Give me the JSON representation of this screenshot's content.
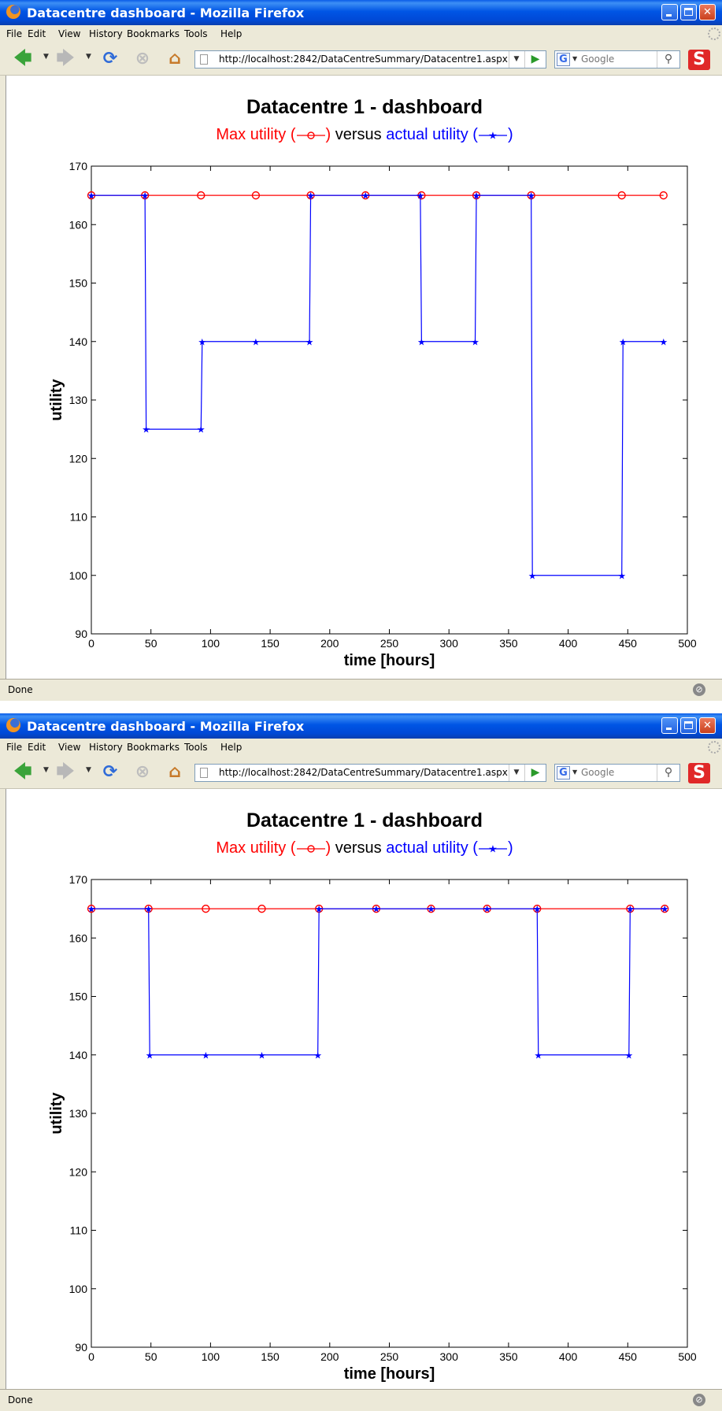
{
  "browser": {
    "window_title": "Datacentre dashboard - Mozilla Firefox",
    "menu": [
      "File",
      "Edit",
      "View",
      "History",
      "Bookmarks",
      "Tools",
      "Help"
    ],
    "url": "http://localhost:2842/DataCentreSummary/Datacentre1.aspx",
    "search_placeholder": "Google",
    "status": "Done"
  },
  "dashboard": {
    "title": "Datacentre 1 - dashboard",
    "subtitle_max": "Max utility (",
    "subtitle_max_close": ")",
    "subtitle_versus": "versus",
    "subtitle_actual": "actual utility (",
    "subtitle_actual_close": ")"
  },
  "colors": {
    "max_series": "#ff0000",
    "actual_series": "#0000ff",
    "titlebar": "#0055e5"
  },
  "chart_data": [
    {
      "type": "line",
      "title": "Datacentre 1 - dashboard",
      "xlabel": "time [hours]",
      "ylabel": "utility",
      "xlim": [
        0,
        500
      ],
      "ylim": [
        90,
        170
      ],
      "xticks": [
        0,
        50,
        100,
        150,
        200,
        250,
        300,
        350,
        400,
        450,
        500
      ],
      "yticks": [
        90,
        100,
        110,
        120,
        130,
        140,
        150,
        160,
        170
      ],
      "grid": false,
      "series": [
        {
          "name": "Max utility",
          "marker": "circle",
          "x": [
            0,
            45,
            92,
            138,
            184,
            230,
            277,
            323,
            369,
            445,
            480
          ],
          "y": [
            165,
            165,
            165,
            165,
            165,
            165,
            165,
            165,
            165,
            165,
            165
          ]
        },
        {
          "name": "actual utility",
          "marker": "star",
          "x": [
            0,
            45,
            46,
            92,
            93,
            138,
            183,
            184,
            230,
            276,
            277,
            322,
            323,
            369,
            370,
            445,
            446,
            480
          ],
          "y": [
            165,
            165,
            125,
            125,
            140,
            140,
            140,
            165,
            165,
            165,
            140,
            140,
            165,
            165,
            100,
            100,
            140,
            140
          ]
        }
      ]
    },
    {
      "type": "line",
      "title": "Datacentre 1 - dashboard",
      "xlabel": "time [hours]",
      "ylabel": "utility",
      "xlim": [
        0,
        500
      ],
      "ylim": [
        90,
        170
      ],
      "xticks": [
        0,
        50,
        100,
        150,
        200,
        250,
        300,
        350,
        400,
        450,
        500
      ],
      "yticks": [
        90,
        100,
        110,
        120,
        130,
        140,
        150,
        160,
        170
      ],
      "grid": false,
      "series": [
        {
          "name": "Max utility",
          "marker": "circle",
          "x": [
            0,
            48,
            96,
            143,
            191,
            239,
            285,
            332,
            374,
            452,
            481
          ],
          "y": [
            165,
            165,
            165,
            165,
            165,
            165,
            165,
            165,
            165,
            165,
            165
          ]
        },
        {
          "name": "actual utility",
          "marker": "star",
          "x": [
            0,
            48,
            49,
            96,
            143,
            190,
            191,
            239,
            285,
            332,
            374,
            375,
            451,
            452,
            481
          ],
          "y": [
            165,
            165,
            140,
            140,
            140,
            140,
            165,
            165,
            165,
            165,
            165,
            140,
            140,
            165,
            165
          ]
        }
      ]
    }
  ]
}
